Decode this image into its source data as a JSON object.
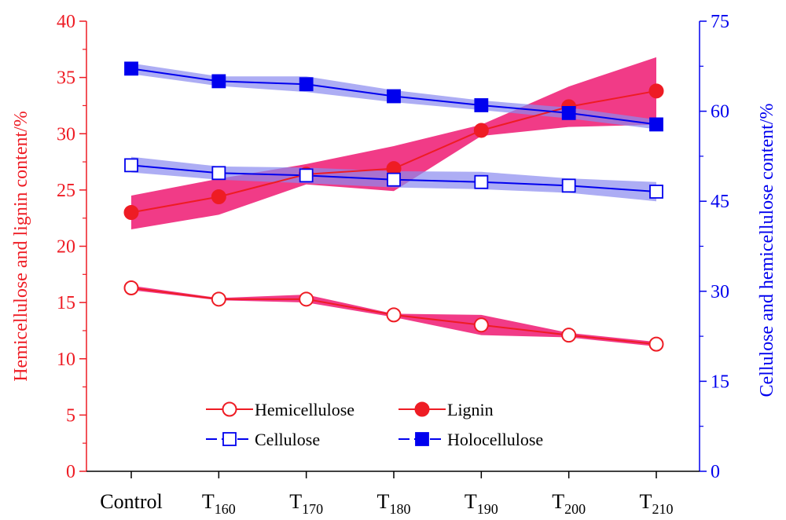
{
  "chart_data": {
    "type": "line",
    "categories": [
      {
        "main": "Control",
        "sub": ""
      },
      {
        "main": "T",
        "sub": "160"
      },
      {
        "main": "T",
        "sub": "170"
      },
      {
        "main": "T",
        "sub": "180"
      },
      {
        "main": "T",
        "sub": "190"
      },
      {
        "main": "T",
        "sub": "200"
      },
      {
        "main": "T",
        "sub": "210"
      }
    ],
    "y_left": {
      "label": "Hemicellulose and lignin content/%",
      "range": [
        0,
        40
      ],
      "ticks": [
        "0",
        "5",
        "10",
        "15",
        "20",
        "25",
        "30",
        "35",
        "40"
      ],
      "color": "#ee1c24"
    },
    "y_right": {
      "label": "Cellulose and hemicellulose  content/%",
      "range": [
        0,
        75
      ],
      "ticks": [
        "0",
        "15",
        "30",
        "45",
        "60",
        "75"
      ],
      "color": "#0000ee"
    },
    "series": [
      {
        "name": "Hemicellulose",
        "axis": "left",
        "color": "#ee1c24",
        "marker": "open-circle",
        "values": [
          16.3,
          15.3,
          15.3,
          13.9,
          13.0,
          12.1,
          11.3
        ],
        "band_low": [
          16.1,
          15.2,
          15.0,
          13.7,
          12.1,
          11.9,
          11.1
        ],
        "band_high": [
          16.5,
          15.4,
          15.7,
          14.0,
          13.9,
          12.3,
          11.5
        ]
      },
      {
        "name": "Lignin",
        "axis": "left",
        "color": "#ee1c24",
        "marker": "filled-circle",
        "values": [
          23.0,
          24.4,
          26.4,
          26.9,
          30.3,
          32.4,
          33.8
        ],
        "band_low": [
          21.5,
          22.8,
          25.5,
          24.9,
          29.8,
          30.6,
          30.8
        ],
        "band_high": [
          24.5,
          26.0,
          27.3,
          28.9,
          30.8,
          34.2,
          36.8
        ]
      },
      {
        "name": "Cellulose",
        "axis": "right",
        "color": "#0000ee",
        "marker": "open-square",
        "values": [
          51.0,
          49.7,
          49.3,
          48.6,
          48.2,
          47.6,
          46.6
        ],
        "band_low": [
          49.8,
          48.6,
          48.0,
          47.3,
          47.0,
          46.4,
          45.0
        ],
        "band_high": [
          52.4,
          50.8,
          50.6,
          50.0,
          49.9,
          48.8,
          48.2
        ]
      },
      {
        "name": "Holocellulose",
        "axis": "right",
        "color": "#0000ee",
        "marker": "filled-square",
        "values": [
          67.1,
          65.0,
          64.5,
          62.5,
          61.0,
          59.7,
          57.8
        ],
        "band_low": [
          66.2,
          64.2,
          63.2,
          61.5,
          60.2,
          58.8,
          57.0
        ],
        "band_high": [
          68.0,
          65.8,
          65.8,
          63.5,
          61.8,
          60.6,
          58.6
        ]
      }
    ],
    "band_colors": {
      "left": "#f0267a",
      "right": "#8a8af0"
    },
    "legend": {
      "placement": "bottom-center",
      "columns": 2
    },
    "grid": false
  }
}
